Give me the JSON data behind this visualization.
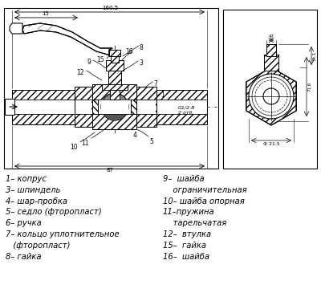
{
  "bg_color": "#ffffff",
  "legend_left": [
    "1– копрус",
    "3– шпиндель",
    "4– шар-пробка",
    "5– седло (фторопласт)",
    "6– ручка",
    "7– кольцо уплотнительное",
    "   (фторопласт)",
    "8– гайка"
  ],
  "legend_right": [
    "9–  шайба",
    "    ограничительная",
    "10– шайба опорная",
    "11–пружина",
    "    тарельчатая",
    "12–  втулка",
    "15–  гайка",
    "16–  шайба"
  ],
  "fs": 7.2
}
